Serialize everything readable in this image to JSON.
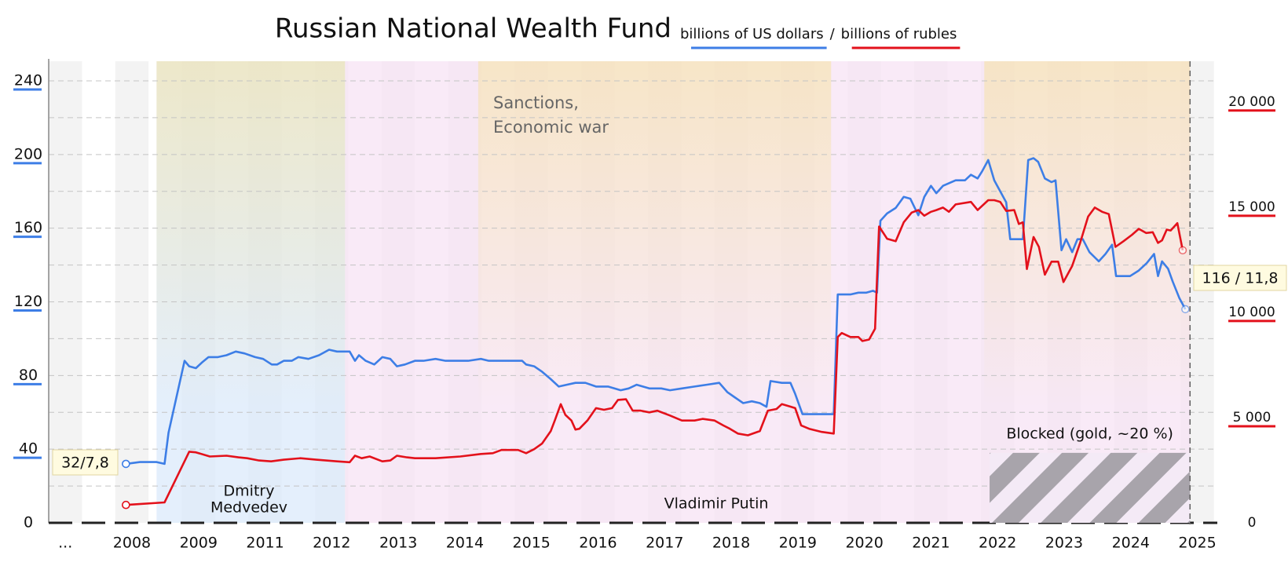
{
  "chart_data": {
    "type": "line",
    "title": "Russian National Wealth Fund",
    "legend_separator": "/",
    "grid": true,
    "xlim": [
      -0.25,
      17.3
    ],
    "xticks": [
      {
        "value": 0,
        "label": "..."
      },
      {
        "value": 1,
        "label": "2008"
      },
      {
        "value": 2,
        "label": "2009"
      },
      {
        "value": 3,
        "label": "2011"
      },
      {
        "value": 4,
        "label": "2012"
      },
      {
        "value": 5,
        "label": "2013"
      },
      {
        "value": 6,
        "label": "2014"
      },
      {
        "value": 7,
        "label": "2015"
      },
      {
        "value": 8,
        "label": "2016"
      },
      {
        "value": 9,
        "label": "2017"
      },
      {
        "value": 10,
        "label": "2018"
      },
      {
        "value": 11,
        "label": "2019"
      },
      {
        "value": 12,
        "label": "2020"
      },
      {
        "value": 13,
        "label": "2021"
      },
      {
        "value": 14,
        "label": "2022"
      },
      {
        "value": 15,
        "label": "2023"
      },
      {
        "value": 16,
        "label": "2024"
      },
      {
        "value": 17,
        "label": "2025"
      }
    ],
    "ylim": [
      0,
      240
    ],
    "yticks": [
      0,
      40,
      80,
      120,
      160,
      200,
      240
    ],
    "minor_yticks": [
      20,
      60,
      100,
      140,
      180,
      220
    ],
    "y2lim": [
      0,
      21000
    ],
    "y2ticks": [
      0,
      {
        "value": 5000,
        "label": "5 000"
      },
      {
        "value": 10000,
        "label": "10 000"
      },
      {
        "value": 15000,
        "label": "15 000"
      },
      {
        "value": 20000,
        "label": "20 000"
      }
    ],
    "series": [
      {
        "name": "billions of US dollars",
        "color": "#3d7ee6",
        "x": [
          0.91,
          1.12,
          1.37,
          1.49,
          1.55,
          1.79,
          1.86,
          1.96,
          2.05,
          2.15,
          2.29,
          2.42,
          2.56,
          2.69,
          2.85,
          2.97,
          3.1,
          3.18,
          3.28,
          3.4,
          3.5,
          3.65,
          3.81,
          3.96,
          4.08,
          4.27,
          4.35,
          4.41,
          4.51,
          4.64,
          4.76,
          4.88,
          4.98,
          5.1,
          5.25,
          5.38,
          5.56,
          5.71,
          5.87,
          6.05,
          6.24,
          6.36,
          6.55,
          6.86,
          6.92,
          7.04,
          7.16,
          7.29,
          7.41,
          7.53,
          7.66,
          7.81,
          7.97,
          8.15,
          8.34,
          8.46,
          8.58,
          8.77,
          8.95,
          9.08,
          9.26,
          9.45,
          9.63,
          9.82,
          9.94,
          10.06,
          10.18,
          10.31,
          10.43,
          10.53,
          10.59,
          10.76,
          10.89,
          10.96,
          11.07,
          11.36,
          11.54,
          11.6,
          11.79,
          11.91,
          12.03,
          12.13,
          12.19,
          12.24,
          12.34,
          12.47,
          12.59,
          12.69,
          12.81,
          12.9,
          13.0,
          13.08,
          13.18,
          13.37,
          13.51,
          13.6,
          13.7,
          13.77,
          13.86,
          13.95,
          14.04,
          14.13,
          14.19,
          14.38,
          14.46,
          14.54,
          14.61,
          14.71,
          14.81,
          14.87,
          14.96,
          15.03,
          15.12,
          15.2,
          15.28,
          15.38,
          15.52,
          15.62,
          15.72,
          15.78,
          15.99,
          16.12,
          16.24,
          16.35,
          16.41,
          16.47,
          16.56,
          16.63,
          16.73,
          16.82
        ],
        "values": [
          32,
          33,
          33,
          32,
          49,
          88,
          85,
          84,
          87,
          90,
          90,
          91,
          93,
          92,
          90,
          89,
          86,
          86,
          88,
          88,
          90,
          89,
          91,
          94,
          93,
          93,
          88,
          91,
          88,
          86,
          90,
          89,
          85,
          86,
          88,
          88,
          89,
          88,
          88,
          88,
          89,
          88,
          88,
          88,
          86,
          85,
          82,
          78,
          74,
          75,
          76,
          76,
          74,
          74,
          72,
          73,
          75,
          73,
          73,
          72,
          73,
          74,
          75,
          76,
          71,
          68,
          65,
          66,
          65,
          63,
          77,
          76,
          76,
          70,
          59,
          59,
          59,
          124,
          124,
          125,
          125,
          126,
          125,
          164,
          168,
          171,
          177,
          176,
          167,
          177,
          183,
          179,
          183,
          186,
          186,
          189,
          187,
          191,
          197,
          186,
          180,
          174,
          154,
          154,
          197,
          198,
          196,
          187,
          185,
          186,
          148,
          154,
          147,
          154,
          154,
          147,
          142,
          146,
          151,
          134,
          134,
          137,
          141,
          146,
          134,
          142,
          138,
          131,
          122,
          116
        ]
      },
      {
        "name": "billions of rubles",
        "color": "#e3111b",
        "axis": "y2",
        "x": [
          0.91,
          1.49,
          1.86,
          1.96,
          2.17,
          2.42,
          2.6,
          2.73,
          2.91,
          3.09,
          3.28,
          3.53,
          3.77,
          4.08,
          4.27,
          4.35,
          4.45,
          4.57,
          4.76,
          4.88,
          4.98,
          5.13,
          5.25,
          5.56,
          5.93,
          6.24,
          6.42,
          6.55,
          6.8,
          6.92,
          7.04,
          7.16,
          7.29,
          7.35,
          7.44,
          7.51,
          7.6,
          7.66,
          7.72,
          7.84,
          7.97,
          8.09,
          8.21,
          8.3,
          8.42,
          8.52,
          8.64,
          8.77,
          8.89,
          9.08,
          9.2,
          9.26,
          9.45,
          9.57,
          9.75,
          9.88,
          9.98,
          10.1,
          10.25,
          10.43,
          10.55,
          10.68,
          10.76,
          10.89,
          10.96,
          11.05,
          11.17,
          11.36,
          11.54,
          11.6,
          11.66,
          11.79,
          11.91,
          11.97,
          12.07,
          12.16,
          12.22,
          12.34,
          12.47,
          12.59,
          12.71,
          12.81,
          12.9,
          13.0,
          13.08,
          13.18,
          13.27,
          13.37,
          13.6,
          13.7,
          13.86,
          13.95,
          14.04,
          14.13,
          14.25,
          14.32,
          14.38,
          14.44,
          14.54,
          14.62,
          14.71,
          14.81,
          14.91,
          14.99,
          15.12,
          15.24,
          15.36,
          15.46,
          15.57,
          15.67,
          15.77,
          15.89,
          16.02,
          16.12,
          16.23,
          16.33,
          16.41,
          16.47,
          16.54,
          16.6,
          16.7,
          16.78
        ],
        "values": [
          850,
          970,
          3380,
          3350,
          3150,
          3190,
          3110,
          3070,
          2960,
          2920,
          3000,
          3070,
          3000,
          2920,
          2880,
          3190,
          3070,
          3150,
          2920,
          2960,
          3190,
          3110,
          3070,
          3070,
          3150,
          3270,
          3310,
          3460,
          3460,
          3310,
          3500,
          3770,
          4360,
          4860,
          5640,
          5130,
          4860,
          4430,
          4470,
          4860,
          5450,
          5370,
          5450,
          5840,
          5870,
          5330,
          5330,
          5250,
          5330,
          5100,
          4940,
          4860,
          4860,
          4940,
          4860,
          4630,
          4470,
          4240,
          4160,
          4360,
          5330,
          5410,
          5640,
          5520,
          5450,
          4630,
          4470,
          4320,
          4240,
          8830,
          9020,
          8830,
          8830,
          8640,
          8710,
          9220,
          14080,
          13500,
          13380,
          14280,
          14740,
          14860,
          14590,
          14780,
          14860,
          14980,
          14780,
          15130,
          15250,
          14860,
          15330,
          15330,
          15250,
          14820,
          14860,
          14200,
          14280,
          12060,
          13580,
          13110,
          11790,
          12410,
          12410,
          11440,
          12210,
          13300,
          14550,
          14980,
          14780,
          14670,
          13110,
          13380,
          13690,
          13970,
          13770,
          13810,
          13300,
          13420,
          13930,
          13890,
          14240,
          12950
        ]
      }
    ],
    "start_label": "32/7,8",
    "end_label": "116 / 11,8",
    "current_x": 16.89,
    "shaded_periods": [
      [
        1.37,
        4.2
      ],
      [
        6.2,
        11.5
      ],
      [
        13.8,
        16.89
      ]
    ],
    "shaded_label": [
      "Sanctions,",
      "Economic war"
    ],
    "terms": [
      {
        "name": [
          "Dmitry",
          "Medvedev"
        ],
        "x": [
          1.37,
          4.2
        ],
        "color": "#dbeafb"
      },
      {
        "name": [
          "Vladimir Putin"
        ],
        "x": [
          4.2,
          16.89
        ],
        "color": "#f7e3f4"
      }
    ],
    "blocked": {
      "label": "Blocked (gold, ~20 %)",
      "x": [
        13.88,
        16.89
      ],
      "value": 38
    }
  }
}
